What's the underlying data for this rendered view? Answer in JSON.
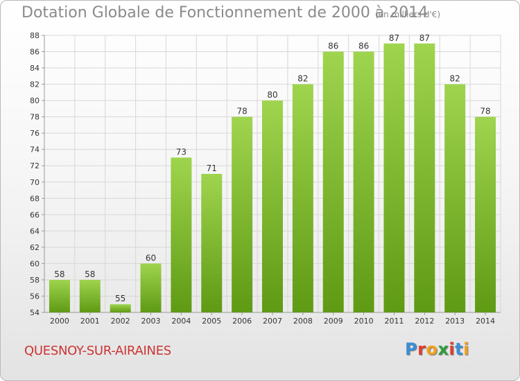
{
  "title": "Dotation Globale de Fonctionnement de 2000 à 2014",
  "subtitle": "(en milliers d'€)",
  "commune": "QUESNOY-SUR-AIRAINES",
  "logo": {
    "letters": [
      "P",
      "r",
      "o",
      "x",
      "i",
      "t",
      "i"
    ],
    "colors": [
      "#3a8fd6",
      "#e03c31",
      "#f2a11b",
      "#2e9e3e",
      "#e03c31",
      "#3a8fd6",
      "#f2a11b"
    ]
  },
  "chart_data": {
    "type": "bar",
    "title": "Dotation Globale de Fonctionnement de 2000 à 2014",
    "subtitle": "(en milliers d'€)",
    "categories": [
      "2000",
      "2001",
      "2002",
      "2003",
      "2004",
      "2005",
      "2006",
      "2007",
      "2008",
      "2009",
      "2010",
      "2011",
      "2012",
      "2013",
      "2014"
    ],
    "values": [
      58,
      58,
      55,
      60,
      73,
      71,
      78,
      80,
      82,
      86,
      86,
      87,
      87,
      82,
      78
    ],
    "ylim": [
      54,
      88
    ],
    "yticks": [
      54,
      56,
      58,
      60,
      62,
      64,
      66,
      68,
      70,
      72,
      74,
      76,
      78,
      80,
      82,
      84,
      86,
      88
    ],
    "grid": true,
    "colors": {
      "bar_top": "#9fd44e",
      "bar_bottom": "#5f9a14",
      "grid": "#d7d7d7",
      "axis": "#999999"
    }
  }
}
